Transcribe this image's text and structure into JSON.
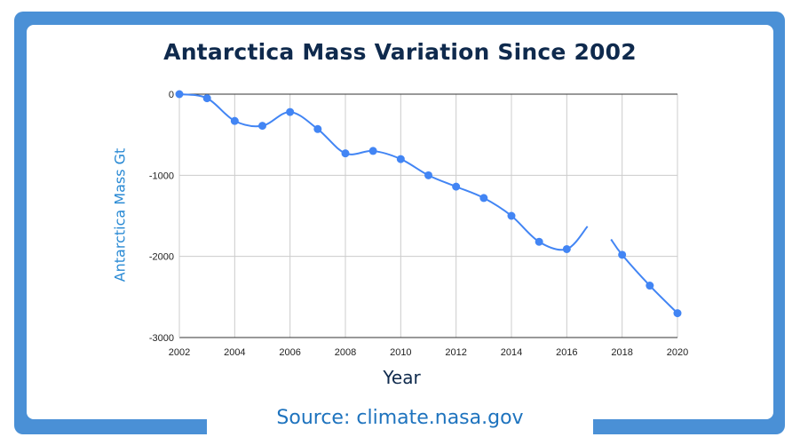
{
  "title": "Antarctica Mass Variation Since 2002",
  "source": "Source: climate.nasa.gov",
  "colors": {
    "frame": "#4a90d6",
    "title": "#0f2a4d",
    "line": "#4285f4",
    "source": "#1e73be",
    "ylabel": "#2a8ad4"
  },
  "chart_data": {
    "type": "line",
    "title": "Antarctica Mass Variation Since 2002",
    "xlabel": "Year",
    "ylabel": "Antarctica Mass Gt",
    "xlim": [
      2002,
      2020
    ],
    "ylim": [
      -3000,
      0
    ],
    "x_ticks": [
      2002,
      2004,
      2006,
      2008,
      2010,
      2012,
      2014,
      2016,
      2018,
      2020
    ],
    "x_tick_labels": [
      "2002",
      "2004",
      "2006",
      "2008",
      "2010",
      "2012",
      "2014",
      "2016",
      "2018",
      "2020"
    ],
    "y_ticks": [
      0,
      -1000,
      -2000,
      -3000
    ],
    "y_tick_labels": [
      "0",
      "-1000",
      "-2000",
      "-3000"
    ],
    "grid": true,
    "series": [
      {
        "segments": [
          [
            {
              "x": 2002,
              "y": 0
            },
            {
              "x": 2003,
              "y": -50
            },
            {
              "x": 2004,
              "y": -330
            },
            {
              "x": 2005,
              "y": -390
            },
            {
              "x": 2006,
              "y": -220
            },
            {
              "x": 2007,
              "y": -430
            },
            {
              "x": 2008,
              "y": -730
            },
            {
              "x": 2009,
              "y": -700
            },
            {
              "x": 2010,
              "y": -800
            },
            {
              "x": 2011,
              "y": -1000
            },
            {
              "x": 2012,
              "y": -1140
            },
            {
              "x": 2013,
              "y": -1280
            },
            {
              "x": 2014,
              "y": -1500
            },
            {
              "x": 2015,
              "y": -1820
            },
            {
              "x": 2016,
              "y": -1910
            },
            {
              "x": 2016.75,
              "y": -1630,
              "marker": false
            }
          ],
          [
            {
              "x": 2017.6,
              "y": -1790,
              "marker": false
            },
            {
              "x": 2018,
              "y": -1980
            },
            {
              "x": 2019,
              "y": -2360
            },
            {
              "x": 2020,
              "y": -2700
            }
          ]
        ]
      }
    ]
  }
}
